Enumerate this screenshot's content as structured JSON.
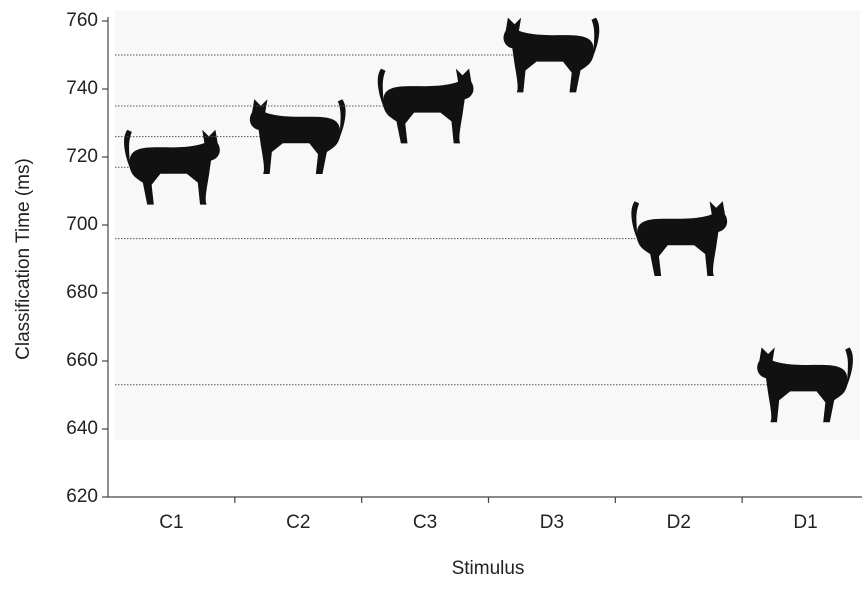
{
  "chart_data": {
    "type": "pictograph",
    "x_label": "Stimulus",
    "y_label": "Classification Time (ms)",
    "categories": [
      "C1",
      "C2",
      "C3",
      "D3",
      "D2",
      "D1"
    ],
    "values": [
      717,
      726,
      735,
      750,
      696,
      653
    ],
    "color": "#111111",
    "ylim": [
      620,
      760
    ],
    "yticks": [
      620,
      640,
      660,
      680,
      700,
      720,
      740,
      760
    ]
  }
}
